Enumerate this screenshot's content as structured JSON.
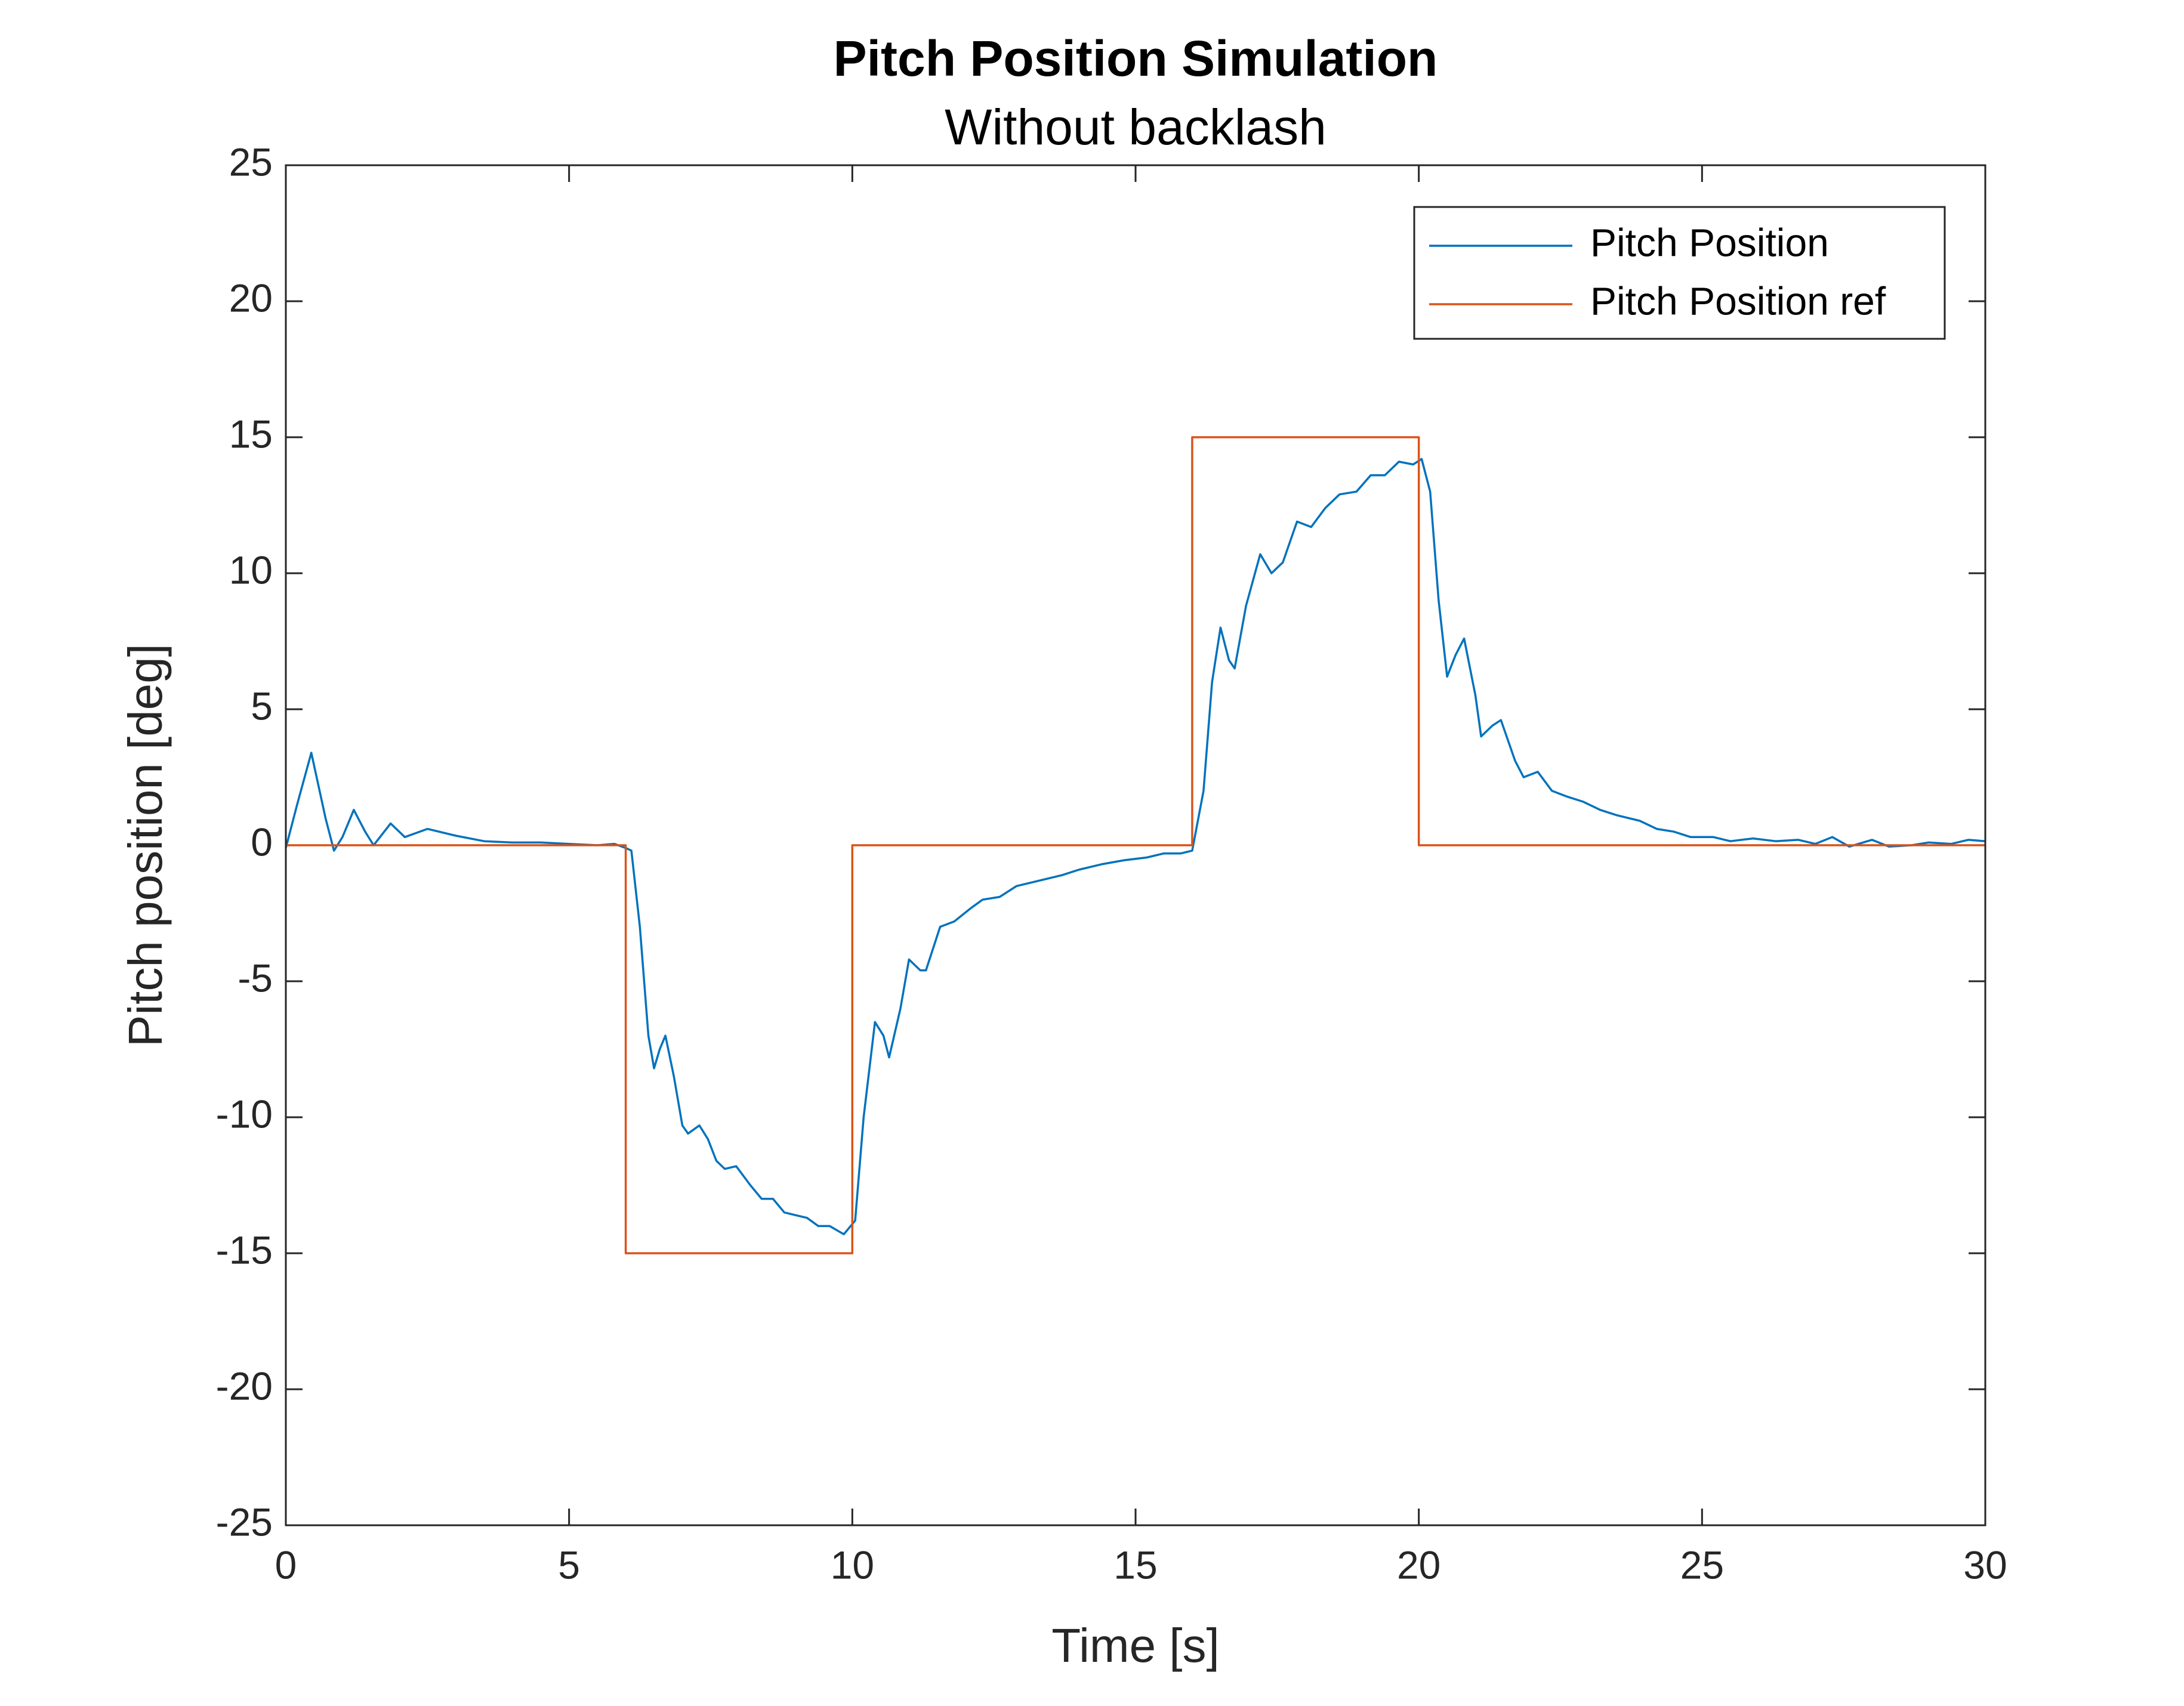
{
  "chart_data": {
    "type": "line",
    "title": "Pitch Position Simulation",
    "subtitle": "Without backlash",
    "xlabel": "Time [s]",
    "ylabel": "Pitch position [deg]",
    "xlim": [
      0,
      30
    ],
    "xticks": [
      0,
      5,
      10,
      15,
      20,
      25,
      30
    ],
    "ylim": [
      -25,
      25
    ],
    "yticks": [
      -25,
      -20,
      -15,
      -10,
      -5,
      0,
      5,
      10,
      15,
      20,
      25
    ],
    "grid": false,
    "legend": "upper right",
    "series": [
      {
        "name": "Pitch Position",
        "color": "#0072bd",
        "x": [
          0,
          0.2,
          0.45,
          0.7,
          0.85,
          1.0,
          1.2,
          1.4,
          1.55,
          1.85,
          2.1,
          2.5,
          3.0,
          3.5,
          4.0,
          4.5,
          5.0,
          5.5,
          5.8,
          6.0,
          6.1,
          6.25,
          6.4,
          6.5,
          6.6,
          6.7,
          6.85,
          7.0,
          7.1,
          7.3,
          7.45,
          7.6,
          7.75,
          7.95,
          8.2,
          8.4,
          8.6,
          8.8,
          9.0,
          9.2,
          9.4,
          9.6,
          9.85,
          10.05,
          10.2,
          10.4,
          10.55,
          10.65,
          10.85,
          11.0,
          11.2,
          11.3,
          11.55,
          11.8,
          12.1,
          12.3,
          12.6,
          12.9,
          13.3,
          13.7,
          14.0,
          14.4,
          14.8,
          15.2,
          15.5,
          15.8,
          16.0,
          16.2,
          16.35,
          16.5,
          16.65,
          16.75,
          16.95,
          17.2,
          17.4,
          17.6,
          17.85,
          18.1,
          18.35,
          18.6,
          18.9,
          19.15,
          19.4,
          19.65,
          19.9,
          20.05,
          20.2,
          20.35,
          20.5,
          20.65,
          20.8,
          21.0,
          21.1,
          21.3,
          21.45,
          21.7,
          21.85,
          22.1,
          22.35,
          22.6,
          22.9,
          23.2,
          23.5,
          23.9,
          24.2,
          24.5,
          24.8,
          25.2,
          25.5,
          25.9,
          26.3,
          26.7,
          27.0,
          27.3,
          27.6,
          28.0,
          28.3,
          28.7,
          29.0,
          29.4,
          29.7,
          30.0
        ],
        "values": [
          -0.1,
          1.5,
          3.4,
          1.0,
          -0.2,
          0.3,
          1.3,
          0.5,
          0.0,
          0.8,
          0.3,
          0.6,
          0.35,
          0.15,
          0.1,
          0.1,
          0.05,
          0.0,
          0.05,
          -0.1,
          -0.2,
          -3,
          -7,
          -8.2,
          -7.5,
          -7.0,
          -8.5,
          -10.3,
          -10.6,
          -10.3,
          -10.8,
          -11.6,
          -11.9,
          -11.8,
          -12.5,
          -13.0,
          -13.0,
          -13.5,
          -13.6,
          -13.7,
          -14.0,
          -14.0,
          -14.3,
          -13.8,
          -10,
          -6.5,
          -7.0,
          -7.8,
          -6.0,
          -4.2,
          -4.6,
          -4.6,
          -3.0,
          -2.8,
          -2.3,
          -2.0,
          -1.9,
          -1.5,
          -1.3,
          -1.1,
          -0.9,
          -0.7,
          -0.55,
          -0.45,
          -0.3,
          -0.3,
          -0.2,
          2,
          6,
          8.0,
          6.8,
          6.5,
          8.8,
          10.7,
          10.0,
          10.4,
          11.9,
          11.7,
          12.4,
          12.9,
          13.0,
          13.6,
          13.6,
          14.1,
          14.0,
          14.2,
          13,
          9,
          6.2,
          7.0,
          7.6,
          5.5,
          4.0,
          4.4,
          4.6,
          3.1,
          2.5,
          2.7,
          2.0,
          1.8,
          1.6,
          1.3,
          1.1,
          0.9,
          0.6,
          0.5,
          0.3,
          0.3,
          0.15,
          0.25,
          0.15,
          0.2,
          0.05,
          0.3,
          -0.05,
          0.2,
          -0.05,
          0.0,
          0.1,
          0.05,
          0.2,
          0.15
        ]
      },
      {
        "name": "Pitch Position ref",
        "color": "#d95319",
        "x": [
          0,
          6,
          6,
          10,
          10,
          16,
          16,
          20,
          20,
          30
        ],
        "values": [
          0,
          0,
          -15,
          -15,
          0,
          0,
          15,
          15,
          0,
          0
        ]
      }
    ]
  }
}
